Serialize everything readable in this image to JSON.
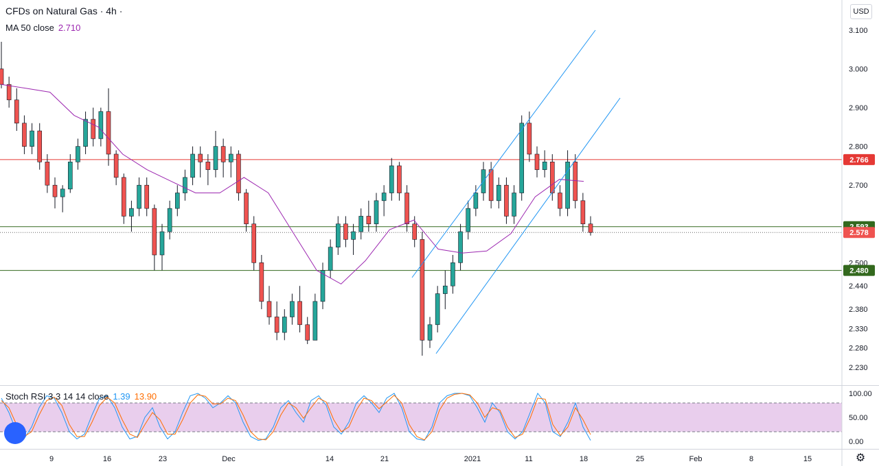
{
  "header": {
    "symbol_title": "CFDs on Natural Gas · 4h ·",
    "currency": "USD"
  },
  "ma": {
    "label": "MA 50 close",
    "value": "2.710"
  },
  "stoch": {
    "label": "Stoch RSI 3 3 14 14 close",
    "k_value": "1.39",
    "d_value": "13.90"
  },
  "colors": {
    "up": "#26a69a",
    "down": "#ef5350",
    "wick": "#131722",
    "ma": "#9c27b0",
    "channel": "#2196f3",
    "res_line": "#e53935",
    "sup_line": "#33691e",
    "stoch_k": "#2196f3",
    "stoch_d": "#ff6d00",
    "stoch_band": "#e1bee7"
  },
  "chart_data": [
    {
      "type": "candlestick",
      "title": "CFDs on Natural Gas · 4h ·",
      "ylim": [
        2.2,
        3.13
      ],
      "price_ticks": [
        "3.100",
        "3.000",
        "2.900",
        "2.800",
        "2.700",
        "2.500",
        "2.440",
        "2.380",
        "2.330",
        "2.280",
        "2.230"
      ],
      "date_ticks": [
        "9",
        "16",
        "23",
        "Dec",
        "14",
        "21",
        "2021",
        "11",
        "18",
        "25",
        "Feb",
        "8",
        "15"
      ],
      "horizontal_levels": [
        {
          "price": 2.766,
          "label": "2.766",
          "color": "#e53935"
        },
        {
          "price": 2.593,
          "label": "2.593",
          "color": "#33691e"
        },
        {
          "price": 2.48,
          "label": "2.480",
          "color": "#33691e"
        }
      ],
      "current_price": {
        "price": 2.578,
        "label": "2.578"
      },
      "channel": {
        "upper": [
          [
            "2021-12-25",
            2.435
          ],
          [
            "2021-01-20",
            3.11
          ]
        ],
        "lower": [
          [
            "2021-12-28",
            2.26
          ],
          [
            "2021-01-27",
            2.91
          ]
        ]
      },
      "ma50_path": [
        [
          "Nov 2",
          2.96
        ],
        [
          "Nov 4",
          2.95
        ],
        [
          "Nov 6",
          2.94
        ],
        [
          "Nov 9",
          2.88
        ],
        [
          "Nov 12",
          2.85
        ],
        [
          "Nov 16",
          2.78
        ],
        [
          "Nov 19",
          2.74
        ],
        [
          "Nov 23",
          2.71
        ],
        [
          "Nov 26",
          2.68
        ],
        [
          "Nov 30",
          2.68
        ],
        [
          "Dec 3",
          2.72
        ],
        [
          "Dec 7",
          2.68
        ],
        [
          "Dec 10",
          2.58
        ],
        [
          "Dec 14",
          2.48
        ],
        [
          "Dec 16",
          2.445
        ],
        [
          "Dec 20",
          2.505
        ],
        [
          "Dec 23",
          2.585
        ],
        [
          "Dec 26",
          2.61
        ],
        [
          "Dec 30",
          2.535
        ],
        [
          "Jan 3",
          2.525
        ],
        [
          "Jan 6",
          2.53
        ],
        [
          "Jan 9",
          2.575
        ],
        [
          "Jan 13",
          2.67
        ],
        [
          "Jan 17",
          2.715
        ],
        [
          "Jan 19",
          2.71
        ]
      ],
      "candles_ohlc": [
        [
          3.0,
          3.07,
          2.95,
          2.96
        ],
        [
          2.96,
          2.98,
          2.9,
          2.92
        ],
        [
          2.92,
          2.95,
          2.84,
          2.86
        ],
        [
          2.86,
          2.88,
          2.78,
          2.8
        ],
        [
          2.8,
          2.86,
          2.78,
          2.84
        ],
        [
          2.84,
          2.86,
          2.74,
          2.76
        ],
        [
          2.76,
          2.78,
          2.68,
          2.7
        ],
        [
          2.7,
          2.72,
          2.64,
          2.67
        ],
        [
          2.67,
          2.7,
          2.63,
          2.69
        ],
        [
          2.69,
          2.78,
          2.68,
          2.76
        ],
        [
          2.76,
          2.82,
          2.74,
          2.8
        ],
        [
          2.8,
          2.89,
          2.78,
          2.87
        ],
        [
          2.87,
          2.9,
          2.8,
          2.82
        ],
        [
          2.82,
          2.9,
          2.8,
          2.89
        ],
        [
          2.89,
          2.95,
          2.75,
          2.78
        ],
        [
          2.78,
          2.79,
          2.7,
          2.72
        ],
        [
          2.72,
          2.73,
          2.6,
          2.62
        ],
        [
          2.62,
          2.66,
          2.58,
          2.64
        ],
        [
          2.64,
          2.72,
          2.62,
          2.7
        ],
        [
          2.7,
          2.72,
          2.62,
          2.64
        ],
        [
          2.64,
          2.65,
          2.48,
          2.52
        ],
        [
          2.52,
          2.6,
          2.48,
          2.58
        ],
        [
          2.58,
          2.66,
          2.56,
          2.64
        ],
        [
          2.64,
          2.7,
          2.62,
          2.68
        ],
        [
          2.68,
          2.74,
          2.66,
          2.72
        ],
        [
          2.72,
          2.8,
          2.7,
          2.78
        ],
        [
          2.78,
          2.8,
          2.72,
          2.76
        ],
        [
          2.76,
          2.78,
          2.7,
          2.74
        ],
        [
          2.74,
          2.84,
          2.72,
          2.8
        ],
        [
          2.8,
          2.82,
          2.72,
          2.76
        ],
        [
          2.76,
          2.8,
          2.72,
          2.78
        ],
        [
          2.78,
          2.79,
          2.66,
          2.68
        ],
        [
          2.68,
          2.69,
          2.58,
          2.6
        ],
        [
          2.6,
          2.62,
          2.48,
          2.5
        ],
        [
          2.5,
          2.52,
          2.38,
          2.4
        ],
        [
          2.4,
          2.44,
          2.34,
          2.36
        ],
        [
          2.36,
          2.4,
          2.3,
          2.32
        ],
        [
          2.32,
          2.38,
          2.3,
          2.36
        ],
        [
          2.36,
          2.42,
          2.34,
          2.4
        ],
        [
          2.4,
          2.44,
          2.32,
          2.34
        ],
        [
          2.34,
          2.36,
          2.29,
          2.3
        ],
        [
          2.3,
          2.42,
          2.3,
          2.4
        ],
        [
          2.4,
          2.5,
          2.38,
          2.48
        ],
        [
          2.48,
          2.56,
          2.46,
          2.54
        ],
        [
          2.54,
          2.62,
          2.52,
          2.6
        ],
        [
          2.6,
          2.62,
          2.54,
          2.56
        ],
        [
          2.56,
          2.6,
          2.52,
          2.58
        ],
        [
          2.58,
          2.64,
          2.56,
          2.62
        ],
        [
          2.62,
          2.66,
          2.58,
          2.6
        ],
        [
          2.6,
          2.68,
          2.58,
          2.66
        ],
        [
          2.66,
          2.7,
          2.62,
          2.68
        ],
        [
          2.68,
          2.77,
          2.66,
          2.75
        ],
        [
          2.75,
          2.76,
          2.66,
          2.68
        ],
        [
          2.68,
          2.7,
          2.58,
          2.6
        ],
        [
          2.6,
          2.62,
          2.54,
          2.56
        ],
        [
          2.56,
          2.58,
          2.26,
          2.3
        ],
        [
          2.3,
          2.36,
          2.28,
          2.34
        ],
        [
          2.34,
          2.44,
          2.32,
          2.42
        ],
        [
          2.42,
          2.48,
          2.38,
          2.44
        ],
        [
          2.44,
          2.52,
          2.42,
          2.5
        ],
        [
          2.5,
          2.6,
          2.48,
          2.58
        ],
        [
          2.58,
          2.66,
          2.56,
          2.64
        ],
        [
          2.64,
          2.7,
          2.62,
          2.68
        ],
        [
          2.68,
          2.76,
          2.66,
          2.74
        ],
        [
          2.74,
          2.76,
          2.64,
          2.66
        ],
        [
          2.66,
          2.72,
          2.64,
          2.7
        ],
        [
          2.7,
          2.72,
          2.6,
          2.62
        ],
        [
          2.62,
          2.7,
          2.6,
          2.68
        ],
        [
          2.68,
          2.88,
          2.66,
          2.86
        ],
        [
          2.86,
          2.89,
          2.76,
          2.78
        ],
        [
          2.78,
          2.8,
          2.72,
          2.74
        ],
        [
          2.74,
          2.79,
          2.72,
          2.76
        ],
        [
          2.76,
          2.78,
          2.66,
          2.68
        ],
        [
          2.68,
          2.7,
          2.62,
          2.64
        ],
        [
          2.64,
          2.79,
          2.62,
          2.76
        ],
        [
          2.76,
          2.78,
          2.64,
          2.66
        ],
        [
          2.66,
          2.68,
          2.58,
          2.6
        ],
        [
          2.6,
          2.62,
          2.57,
          2.578
        ]
      ],
      "candle_date_range": [
        "2020-11-02",
        "2021-01-19"
      ]
    },
    {
      "type": "line",
      "title": "Stoch RSI 3 3 14 14 close",
      "ylim": [
        0,
        100
      ],
      "y_ticks": [
        "100.00",
        "50.00",
        "0.00"
      ],
      "bands": [
        20,
        80
      ],
      "series": [
        {
          "name": "K",
          "color": "#2196f3",
          "values": [
            90,
            60,
            20,
            5,
            30,
            70,
            95,
            90,
            60,
            20,
            5,
            15,
            55,
            90,
            95,
            70,
            30,
            5,
            10,
            50,
            70,
            30,
            5,
            20,
            60,
            95,
            100,
            90,
            70,
            80,
            95,
            80,
            40,
            10,
            2,
            5,
            30,
            70,
            85,
            60,
            40,
            85,
            95,
            75,
            30,
            15,
            40,
            80,
            95,
            80,
            60,
            90,
            100,
            70,
            20,
            5,
            2,
            30,
            80,
            95,
            100,
            100,
            95,
            70,
            40,
            80,
            60,
            20,
            5,
            20,
            60,
            100,
            80,
            20,
            10,
            40,
            80,
            30,
            2
          ]
        },
        {
          "name": "D",
          "color": "#ff6d00",
          "values": [
            85,
            70,
            35,
            10,
            20,
            55,
            85,
            92,
            75,
            35,
            10,
            10,
            40,
            75,
            92,
            80,
            45,
            15,
            8,
            35,
            60,
            45,
            15,
            15,
            45,
            80,
            97,
            94,
            78,
            78,
            90,
            85,
            55,
            20,
            5,
            3,
            20,
            55,
            80,
            70,
            48,
            70,
            90,
            82,
            45,
            20,
            30,
            65,
            90,
            85,
            68,
            82,
            96,
            80,
            35,
            10,
            3,
            20,
            65,
            90,
            98,
            100,
            97,
            80,
            50,
            70,
            65,
            30,
            8,
            15,
            48,
            90,
            88,
            35,
            12,
            30,
            70,
            45,
            14
          ]
        }
      ]
    }
  ]
}
